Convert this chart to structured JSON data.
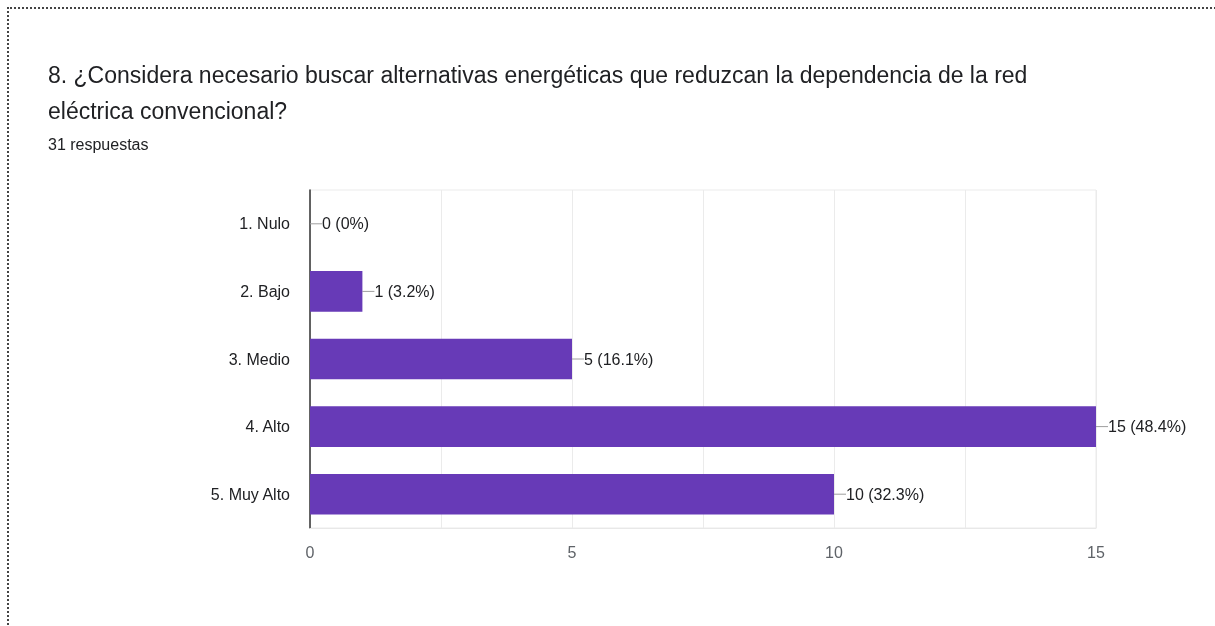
{
  "chart_data": {
    "type": "bar",
    "orientation": "horizontal",
    "title": "8. ¿Considera necesario buscar alternativas energéticas que reduzcan la dependencia de la red eléctrica convencional?",
    "subtitle": "31 respuestas",
    "categories": [
      "1. Nulo",
      "2. Bajo",
      "3. Medio",
      "4. Alto",
      "5. Muy Alto"
    ],
    "values": [
      0,
      1,
      5,
      15,
      10
    ],
    "value_labels": [
      "0 (0%)",
      "1 (3.2%)",
      "5 (16.1%)",
      "15 (48.4%)",
      "10 (32.3%)"
    ],
    "color": "#673ab7",
    "xlim": [
      0,
      15
    ],
    "xticks": [
      0,
      {
        "value": 2.5,
        "label": null
      },
      5,
      {
        "value": 7.5,
        "label": null
      },
      10,
      {
        "value": 12.5,
        "label": null
      },
      15
    ],
    "grid": "x"
  }
}
